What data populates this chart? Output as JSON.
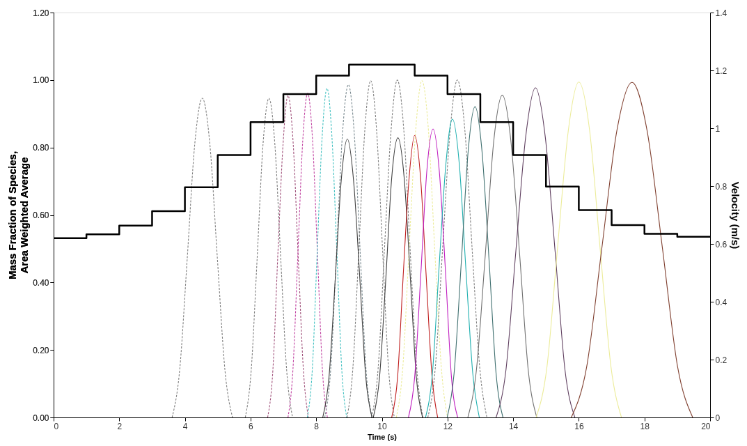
{
  "chart_data": {
    "type": "line",
    "xlabel": "Time (s)",
    "ylabel": "Mass Fraction of Species, Area Weighted Average",
    "y2label": "Velocity (m/s)",
    "xlim": [
      0,
      20
    ],
    "xticks": [
      0,
      2,
      4,
      6,
      8,
      10,
      12,
      14,
      16,
      18,
      20
    ],
    "ylim": [
      0,
      1.2
    ],
    "yticks": [
      {
        "value": 0,
        "label": "0.00"
      },
      {
        "value": 0.2,
        "label": "0.20"
      },
      {
        "value": 0.4,
        "label": "0.40"
      },
      {
        "value": 0.6,
        "label": "0.60"
      },
      {
        "value": 0.8,
        "label": "0.80"
      },
      {
        "value": 1.0,
        "label": "1.00"
      },
      {
        "value": 1.2,
        "label": "1.20"
      }
    ],
    "y2lim": [
      0,
      1.4
    ],
    "y2ticks": [
      0,
      0.2,
      0.4,
      0.6,
      0.8,
      1,
      1.2,
      1.4
    ],
    "grid": false,
    "legend": false,
    "marker": "none",
    "series": [
      {
        "color": "#7f7f7f",
        "line_style": "dashed",
        "x": [
          3.61,
          3.84,
          4.07,
          4.3,
          4.53,
          4.76,
          4.99,
          5.22,
          5.45
        ],
        "values": [
          0,
          0.14,
          0.47,
          0.81,
          0.946,
          0.81,
          0.47,
          0.14,
          0
        ]
      },
      {
        "color": "#7f7f7f",
        "line_style": "dashed",
        "x": [
          5.84,
          6.02,
          6.2,
          6.38,
          6.56,
          6.74,
          6.92,
          7.1,
          7.28
        ],
        "values": [
          0,
          0.14,
          0.47,
          0.81,
          0.946,
          0.81,
          0.47,
          0.14,
          0
        ]
      },
      {
        "color": "#a0507a",
        "line_style": "dashed",
        "x": [
          6.52,
          6.68,
          6.83,
          6.99,
          7.14,
          7.3,
          7.45,
          7.61,
          7.76
        ],
        "values": [
          0,
          0.14,
          0.48,
          0.81,
          0.954,
          0.81,
          0.48,
          0.14,
          0
        ]
      },
      {
        "color": "#c040a0",
        "line_style": "dashed",
        "x": [
          7.14,
          7.29,
          7.44,
          7.59,
          7.74,
          7.89,
          8.04,
          8.19,
          8.34
        ],
        "values": [
          0,
          0.14,
          0.48,
          0.82,
          0.961,
          0.82,
          0.48,
          0.14,
          0
        ]
      },
      {
        "color": "#40c0c0",
        "line_style": "dashed",
        "x": [
          7.73,
          7.88,
          8.03,
          8.18,
          8.33,
          8.48,
          8.63,
          8.78,
          8.93
        ],
        "values": [
          0,
          0.14,
          0.49,
          0.83,
          0.975,
          0.83,
          0.49,
          0.14,
          0
        ]
      },
      {
        "color": "#7a8a90",
        "line_style": "dashed",
        "x": [
          8.26,
          8.44,
          8.62,
          8.8,
          8.98,
          9.16,
          9.34,
          9.52,
          9.7
        ],
        "values": [
          0,
          0.14,
          0.49,
          0.84,
          0.986,
          0.84,
          0.49,
          0.14,
          0
        ]
      },
      {
        "color": "#7f7f7f",
        "line_style": "dashed",
        "x": [
          8.94,
          9.12,
          9.3,
          9.48,
          9.66,
          9.84,
          10.02,
          10.2,
          10.38
        ],
        "values": [
          0,
          0.15,
          0.5,
          0.85,
          0.998,
          0.85,
          0.5,
          0.15,
          0
        ]
      },
      {
        "color": "#7f7f7f",
        "line_style": "dashed",
        "x": [
          9.69,
          9.89,
          10.08,
          10.28,
          10.47,
          10.67,
          10.86,
          11.06,
          11.25
        ],
        "values": [
          0,
          0.15,
          0.5,
          0.85,
          1.0,
          0.85,
          0.5,
          0.15,
          0
        ]
      },
      {
        "color": "#404040",
        "line_style": "solid",
        "x": [
          8.2,
          8.39,
          8.58,
          8.76,
          8.95,
          9.14,
          9.33,
          9.51,
          9.7
        ],
        "values": [
          0,
          0.12,
          0.41,
          0.7,
          0.825,
          0.7,
          0.41,
          0.12,
          0
        ]
      },
      {
        "color": "#404040",
        "line_style": "solid",
        "x": [
          9.74,
          9.93,
          10.12,
          10.3,
          10.49,
          10.68,
          10.87,
          11.05,
          11.24
        ],
        "values": [
          0,
          0.12,
          0.41,
          0.71,
          0.829,
          0.71,
          0.41,
          0.12,
          0
        ]
      },
      {
        "color": "#ecec9a",
        "line_style": "dashed",
        "x": [
          10.44,
          10.64,
          10.83,
          11.03,
          11.22,
          11.42,
          11.61,
          11.81,
          12.0
        ],
        "values": [
          0,
          0.15,
          0.5,
          0.85,
          0.998,
          0.85,
          0.5,
          0.15,
          0
        ]
      },
      {
        "color": "#7f7f7f",
        "line_style": "dashed",
        "x": [
          11.4,
          11.63,
          11.85,
          12.08,
          12.3,
          12.53,
          12.75,
          12.98,
          13.2
        ],
        "values": [
          0,
          0.15,
          0.5,
          0.85,
          1.0,
          0.85,
          0.5,
          0.15,
          0
        ]
      },
      {
        "color": "#c02020",
        "line_style": "solid",
        "x": [
          10.3,
          10.48,
          10.65,
          10.83,
          11.0,
          11.18,
          11.35,
          11.53,
          11.7
        ],
        "values": [
          0,
          0.12,
          0.42,
          0.71,
          0.836,
          0.71,
          0.42,
          0.12,
          0
        ]
      },
      {
        "color": "#c020c0",
        "line_style": "solid",
        "x": [
          10.81,
          11.0,
          11.19,
          11.37,
          11.56,
          11.75,
          11.94,
          12.12,
          12.31
        ],
        "values": [
          0,
          0.12,
          0.43,
          0.73,
          0.855,
          0.73,
          0.43,
          0.12,
          0
        ]
      },
      {
        "color": "#20b0b0",
        "line_style": "solid",
        "x": [
          11.33,
          11.54,
          11.74,
          11.95,
          12.15,
          12.36,
          12.56,
          12.77,
          12.97
        ],
        "values": [
          0,
          0.13,
          0.44,
          0.75,
          0.884,
          0.75,
          0.44,
          0.13,
          0
        ]
      },
      {
        "color": "#407070",
        "line_style": "solid",
        "x": [
          11.99,
          12.2,
          12.42,
          12.63,
          12.84,
          13.05,
          13.27,
          13.48,
          13.69
        ],
        "values": [
          0,
          0.13,
          0.46,
          0.79,
          0.921,
          0.79,
          0.46,
          0.13,
          0
        ]
      },
      {
        "color": "#707070",
        "line_style": "solid",
        "x": [
          12.62,
          12.88,
          13.15,
          13.41,
          13.67,
          13.93,
          14.2,
          14.46,
          14.72
        ],
        "values": [
          0,
          0.14,
          0.48,
          0.82,
          0.955,
          0.82,
          0.48,
          0.14,
          0
        ]
      },
      {
        "color": "#604060",
        "line_style": "solid",
        "x": [
          13.48,
          13.78,
          14.08,
          14.38,
          14.68,
          14.98,
          15.28,
          15.58,
          15.88
        ],
        "values": [
          0,
          0.14,
          0.49,
          0.83,
          0.977,
          0.83,
          0.49,
          0.14,
          0
        ]
      },
      {
        "color": "#ecec9a",
        "line_style": "solid",
        "x": [
          14.7,
          15.03,
          15.35,
          15.68,
          16.0,
          16.33,
          16.65,
          16.98,
          17.3
        ],
        "values": [
          0,
          0.15,
          0.5,
          0.85,
          0.994,
          0.85,
          0.5,
          0.15,
          0
        ]
      },
      {
        "color": "#804030",
        "line_style": "solid",
        "x": [
          15.77,
          16.24,
          16.7,
          17.16,
          17.62,
          18.08,
          18.55,
          19.01,
          19.47
        ],
        "values": [
          0,
          0.15,
          0.5,
          0.85,
          0.993,
          0.85,
          0.5,
          0.15,
          0
        ]
      },
      {
        "type": "step",
        "axis": "y2",
        "color": "#000000",
        "line_style": "solid",
        "x": [
          0,
          1,
          2,
          3,
          4,
          5,
          6,
          7,
          8,
          9,
          10,
          11,
          12,
          13,
          14,
          15,
          16,
          17,
          18,
          19,
          20
        ],
        "values": [
          0.62,
          0.633,
          0.663,
          0.713,
          0.796,
          0.907,
          1.021,
          1.118,
          1.182,
          1.22,
          1.22,
          1.182,
          1.118,
          1.021,
          0.907,
          0.798,
          0.717,
          0.665,
          0.635,
          0.625,
          0.625
        ]
      }
    ]
  }
}
